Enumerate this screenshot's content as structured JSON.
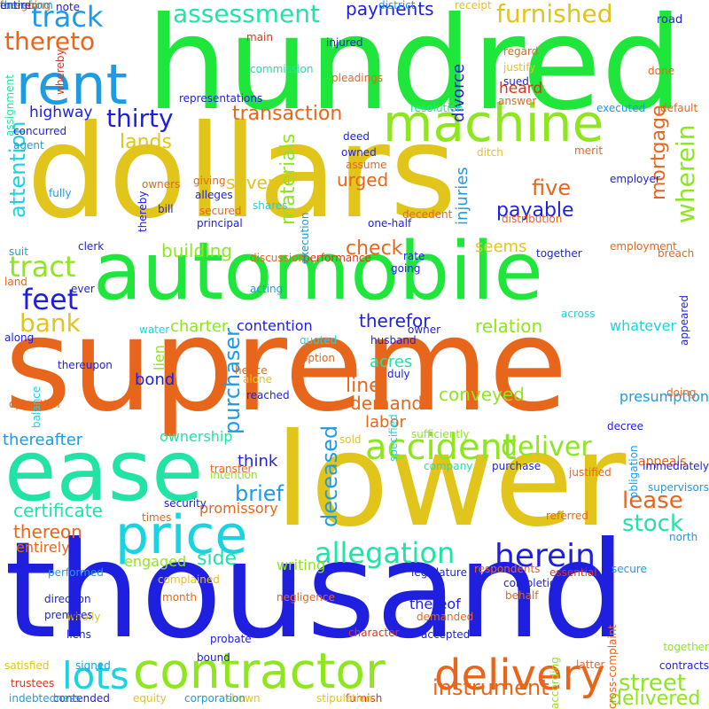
{
  "palette": {
    "green": "#1ee63a",
    "yellow": "#e2c51a",
    "orange": "#e8661b",
    "blue": "#1f1fe0",
    "cyan": "#19d4e0",
    "teal": "#22e3a6",
    "lime": "#8ee61e",
    "sky": "#1e9be3",
    "red": "#e0341a",
    "purple": "#6a1ee0"
  },
  "words": [
    {
      "text": "hundred",
      "color": "green",
      "rot": false
    },
    {
      "text": "dollars",
      "color": "yellow",
      "rot": false
    },
    {
      "text": "automobile",
      "color": "green",
      "rot": false
    },
    {
      "text": "supreme",
      "color": "orange",
      "rot": false
    },
    {
      "text": "lower",
      "color": "yellow",
      "rot": false
    },
    {
      "text": "thousand",
      "color": "blue",
      "rot": false
    },
    {
      "text": "ease",
      "color": "teal",
      "rot": false
    },
    {
      "text": "machine",
      "color": "lime",
      "rot": false
    },
    {
      "text": "rent",
      "color": "sky",
      "rot": false
    },
    {
      "text": "price",
      "color": "cyan",
      "rot": false
    },
    {
      "text": "contractor",
      "color": "lime",
      "rot": false
    },
    {
      "text": "delivery",
      "color": "orange",
      "rot": false
    },
    {
      "text": "accident",
      "color": "lime",
      "rot": false
    },
    {
      "text": "assessment",
      "color": "teal",
      "rot": false
    },
    {
      "text": "furnished",
      "color": "yellow",
      "rot": false
    },
    {
      "text": "track",
      "color": "sky",
      "rot": false
    },
    {
      "text": "thereto",
      "color": "orange",
      "rot": false
    },
    {
      "text": "payments",
      "color": "blue",
      "rot": false
    },
    {
      "text": "thirty",
      "color": "blue",
      "rot": false
    },
    {
      "text": "transaction",
      "color": "orange",
      "rot": false
    },
    {
      "text": "mortgage",
      "color": "orange",
      "rot": true
    },
    {
      "text": "wherein",
      "color": "lime",
      "rot": true
    },
    {
      "text": "tract",
      "color": "lime",
      "rot": false
    },
    {
      "text": "feet",
      "color": "blue",
      "rot": false
    },
    {
      "text": "lands",
      "color": "yellow",
      "rot": false
    },
    {
      "text": "highway",
      "color": "blue",
      "rot": false
    },
    {
      "text": "attention",
      "color": "cyan",
      "rot": true
    },
    {
      "text": "materials",
      "color": "lime",
      "rot": true
    },
    {
      "text": "allegation",
      "color": "teal",
      "rot": false
    },
    {
      "text": "herein",
      "color": "blue",
      "rot": false
    },
    {
      "text": "deliver",
      "color": "lime",
      "rot": false
    },
    {
      "text": "lots",
      "color": "cyan",
      "rot": false
    },
    {
      "text": "street",
      "color": "lime",
      "rot": false
    },
    {
      "text": "stock",
      "color": "teal",
      "rot": false
    },
    {
      "text": "lease",
      "color": "orange",
      "rot": false
    },
    {
      "text": "instrument",
      "color": "orange",
      "rot": false
    },
    {
      "text": "delivered",
      "color": "lime",
      "rot": false
    },
    {
      "text": "bank",
      "color": "yellow",
      "rot": false
    },
    {
      "text": "brief",
      "color": "sky",
      "rot": false
    },
    {
      "text": "purchaser",
      "color": "sky",
      "rot": true
    },
    {
      "text": "deceased",
      "color": "sky",
      "rot": true
    },
    {
      "text": "payable",
      "color": "blue",
      "rot": false
    },
    {
      "text": "check",
      "color": "orange",
      "rot": false
    },
    {
      "text": "five",
      "color": "orange",
      "rot": false
    },
    {
      "text": "seven",
      "color": "yellow",
      "rot": false
    },
    {
      "text": "urged",
      "color": "orange",
      "rot": false
    },
    {
      "text": "injuries",
      "color": "sky",
      "rot": true
    },
    {
      "text": "divorce",
      "color": "blue",
      "rot": true
    },
    {
      "text": "heard",
      "color": "red",
      "rot": false
    },
    {
      "text": "building",
      "color": "lime",
      "rot": false
    },
    {
      "text": "seems",
      "color": "yellow",
      "rot": false
    },
    {
      "text": "relation",
      "color": "lime",
      "rot": false
    },
    {
      "text": "therefor",
      "color": "blue",
      "rot": false
    },
    {
      "text": "whatever",
      "color": "cyan",
      "rot": false
    },
    {
      "text": "charter",
      "color": "lime",
      "rot": false
    },
    {
      "text": "contention",
      "color": "blue",
      "rot": false
    },
    {
      "text": "acres",
      "color": "teal",
      "rot": false
    },
    {
      "text": "line",
      "color": "orange",
      "rot": false
    },
    {
      "text": "demand",
      "color": "orange",
      "rot": false
    },
    {
      "text": "conveyed",
      "color": "lime",
      "rot": false
    },
    {
      "text": "labor",
      "color": "orange",
      "rot": false
    },
    {
      "text": "bond",
      "color": "blue",
      "rot": false
    },
    {
      "text": "lien",
      "color": "lime",
      "rot": true
    },
    {
      "text": "think",
      "color": "blue",
      "rot": false
    },
    {
      "text": "thereafter",
      "color": "sky",
      "rot": false
    },
    {
      "text": "ownership",
      "color": "teal",
      "rot": false
    },
    {
      "text": "certificate",
      "color": "teal",
      "rot": false
    },
    {
      "text": "promissory",
      "color": "orange",
      "rot": false
    },
    {
      "text": "thereon",
      "color": "orange",
      "rot": false
    },
    {
      "text": "entirely",
      "color": "orange",
      "rot": false
    },
    {
      "text": "side",
      "color": "teal",
      "rot": false
    },
    {
      "text": "engaged",
      "color": "lime",
      "rot": false
    },
    {
      "text": "writing",
      "color": "lime",
      "rot": false
    },
    {
      "text": "thereof",
      "color": "blue",
      "rot": false
    },
    {
      "text": "presumption",
      "color": "sky",
      "rot": false
    },
    {
      "text": "appeals",
      "color": "orange",
      "rot": false
    },
    {
      "text": "supervisors",
      "color": "sky",
      "rot": false
    },
    {
      "text": "sold",
      "color": "yellow",
      "rot": false
    },
    {
      "text": "district",
      "color": "sky",
      "rot": false
    },
    {
      "text": "receipt",
      "color": "yellow",
      "rot": false
    },
    {
      "text": "road",
      "color": "blue",
      "rot": false
    },
    {
      "text": "regard",
      "color": "orange",
      "rot": false
    },
    {
      "text": "justify",
      "color": "yellow",
      "rot": false
    },
    {
      "text": "sued",
      "color": "blue",
      "rot": false
    },
    {
      "text": "done",
      "color": "orange",
      "rot": false
    },
    {
      "text": "default",
      "color": "orange",
      "rot": false
    },
    {
      "text": "answer",
      "color": "orange",
      "rot": false
    },
    {
      "text": "executed",
      "color": "sky",
      "rot": false
    },
    {
      "text": "resolution",
      "color": "teal",
      "rot": false
    },
    {
      "text": "employer",
      "color": "blue",
      "rot": false
    },
    {
      "text": "distribution",
      "color": "orange",
      "rot": false
    },
    {
      "text": "merit",
      "color": "orange",
      "rot": false
    },
    {
      "text": "together",
      "color": "blue",
      "rot": false
    },
    {
      "text": "breach",
      "color": "orange",
      "rot": false
    },
    {
      "text": "employment",
      "color": "orange",
      "rot": false
    },
    {
      "text": "across",
      "color": "cyan",
      "rot": false
    },
    {
      "text": "appeared",
      "color": "blue",
      "rot": true
    },
    {
      "text": "doing",
      "color": "orange",
      "rot": false
    },
    {
      "text": "decree",
      "color": "blue",
      "rot": false
    },
    {
      "text": "obligation",
      "color": "sky",
      "rot": true
    },
    {
      "text": "immediately",
      "color": "blue",
      "rot": false
    },
    {
      "text": "justified",
      "color": "orange",
      "rot": false
    },
    {
      "text": "north",
      "color": "sky",
      "rot": false
    },
    {
      "text": "secure",
      "color": "sky",
      "rot": false
    },
    {
      "text": "essential",
      "color": "red",
      "rot": false
    },
    {
      "text": "respondents",
      "color": "orange",
      "rot": false
    },
    {
      "text": "legislature",
      "color": "blue",
      "rot": false
    },
    {
      "text": "character",
      "color": "red",
      "rot": false
    },
    {
      "text": "accepted",
      "color": "blue",
      "rot": false
    },
    {
      "text": "together",
      "color": "lime",
      "rot": false
    },
    {
      "text": "latter",
      "color": "orange",
      "rot": false
    },
    {
      "text": "contracts",
      "color": "blue",
      "rot": false
    },
    {
      "text": "cross-complaint",
      "color": "orange",
      "rot": true
    },
    {
      "text": "according",
      "color": "lime",
      "rot": true
    },
    {
      "text": "furnish",
      "color": "red",
      "rot": false
    },
    {
      "text": "stipulation",
      "color": "yellow",
      "rot": false
    },
    {
      "text": "shown",
      "color": "yellow",
      "rot": false
    },
    {
      "text": "corporation",
      "color": "sky",
      "rot": false
    },
    {
      "text": "equity",
      "color": "yellow",
      "rot": false
    },
    {
      "text": "contended",
      "color": "blue",
      "rot": false
    },
    {
      "text": "indebtedness",
      "color": "sky",
      "rot": false
    },
    {
      "text": "trustees",
      "color": "red",
      "rot": false
    },
    {
      "text": "signed",
      "color": "sky",
      "rot": false
    },
    {
      "text": "satisfied",
      "color": "yellow",
      "rot": false
    },
    {
      "text": "bound",
      "color": "blue",
      "rot": false
    },
    {
      "text": "probate",
      "color": "blue",
      "rot": false
    },
    {
      "text": "liens",
      "color": "blue",
      "rot": false
    },
    {
      "text": "wholly",
      "color": "yellow",
      "rot": false
    },
    {
      "text": "premises",
      "color": "blue",
      "rot": false
    },
    {
      "text": "direction",
      "color": "blue",
      "rot": false
    },
    {
      "text": "performed",
      "color": "sky",
      "rot": false
    },
    {
      "text": "complained",
      "color": "yellow",
      "rot": false
    },
    {
      "text": "month",
      "color": "orange",
      "rot": false
    },
    {
      "text": "demanded",
      "color": "orange",
      "rot": false
    },
    {
      "text": "behalf",
      "color": "orange",
      "rot": false
    },
    {
      "text": "completion",
      "color": "blue",
      "rot": false
    },
    {
      "text": "negligence",
      "color": "orange",
      "rot": false
    },
    {
      "text": "times",
      "color": "orange",
      "rot": false
    },
    {
      "text": "security",
      "color": "blue",
      "rot": false
    },
    {
      "text": "referred",
      "color": "orange",
      "rot": false
    },
    {
      "text": "company",
      "color": "teal",
      "rot": false
    },
    {
      "text": "purchase",
      "color": "blue",
      "rot": false
    },
    {
      "text": "intention",
      "color": "lime",
      "rot": false
    },
    {
      "text": "transfer",
      "color": "orange",
      "rot": false
    },
    {
      "text": "sufficiently",
      "color": "lime",
      "rot": false
    },
    {
      "text": "specified",
      "color": "cyan",
      "rot": true
    },
    {
      "text": "reached",
      "color": "blue",
      "rot": false
    },
    {
      "text": "alone",
      "color": "yellow",
      "rot": false
    },
    {
      "text": "hence",
      "color": "orange",
      "rot": false
    },
    {
      "text": "duly",
      "color": "blue",
      "rot": false
    },
    {
      "text": "option",
      "color": "orange",
      "rot": false
    },
    {
      "text": "operation",
      "color": "orange",
      "rot": false
    },
    {
      "text": "balance",
      "color": "cyan",
      "rot": true
    },
    {
      "text": "thereupon",
      "color": "blue",
      "rot": false
    },
    {
      "text": "along",
      "color": "blue",
      "rot": false
    },
    {
      "text": "water",
      "color": "cyan",
      "rot": false
    },
    {
      "text": "owner",
      "color": "blue",
      "rot": false
    },
    {
      "text": "husband",
      "color": "blue",
      "rot": false
    },
    {
      "text": "quoted",
      "color": "cyan",
      "rot": false
    },
    {
      "text": "acting",
      "color": "sky",
      "rot": false
    },
    {
      "text": "ever",
      "color": "blue",
      "rot": false
    },
    {
      "text": "land",
      "color": "orange",
      "rot": false
    },
    {
      "text": "discussion",
      "color": "orange",
      "rot": false
    },
    {
      "text": "performance",
      "color": "red",
      "rot": false
    },
    {
      "text": "going",
      "color": "blue",
      "rot": false
    },
    {
      "text": "rate",
      "color": "blue",
      "rot": false
    },
    {
      "text": "clerk",
      "color": "blue",
      "rot": false
    },
    {
      "text": "suit",
      "color": "sky",
      "rot": false
    },
    {
      "text": "decedent",
      "color": "orange",
      "rot": false
    },
    {
      "text": "one-half",
      "color": "blue",
      "rot": false
    },
    {
      "text": "principal",
      "color": "blue",
      "rot": false
    },
    {
      "text": "shares",
      "color": "cyan",
      "rot": false
    },
    {
      "text": "execution",
      "color": "sky",
      "rot": true
    },
    {
      "text": "secured",
      "color": "orange",
      "rot": false
    },
    {
      "text": "bill",
      "color": "blue",
      "rot": false
    },
    {
      "text": "thereby",
      "color": "blue",
      "rot": true
    },
    {
      "text": "owners",
      "color": "orange",
      "rot": false
    },
    {
      "text": "alleges",
      "color": "blue",
      "rot": false
    },
    {
      "text": "giving",
      "color": "orange",
      "rot": false
    },
    {
      "text": "fully",
      "color": "sky",
      "rot": false
    },
    {
      "text": "assume",
      "color": "orange",
      "rot": false
    },
    {
      "text": "owned",
      "color": "blue",
      "rot": false
    },
    {
      "text": "ditch",
      "color": "yellow",
      "rot": false
    },
    {
      "text": "deed",
      "color": "blue",
      "rot": false
    },
    {
      "text": "agent",
      "color": "sky",
      "rot": false
    },
    {
      "text": "concurred",
      "color": "blue",
      "rot": false
    },
    {
      "text": "representations",
      "color": "blue",
      "rot": false
    },
    {
      "text": "injured",
      "color": "blue",
      "rot": false
    },
    {
      "text": "commission",
      "color": "teal",
      "rot": false
    },
    {
      "text": "pleadings",
      "color": "orange",
      "rot": false
    },
    {
      "text": "whereby",
      "color": "red",
      "rot": true
    },
    {
      "text": "assignment",
      "color": "teal",
      "rot": true
    },
    {
      "text": "note",
      "color": "blue",
      "rot": false
    },
    {
      "text": "main",
      "color": "red",
      "rot": false
    },
    {
      "text": "therein",
      "color": "orange",
      "rot": false
    },
    {
      "text": "foregoing",
      "color": "orange",
      "rot": false
    },
    {
      "text": "therefrom",
      "color": "sky",
      "rot": false
    },
    {
      "text": "entire",
      "color": "blue",
      "rot": false
    }
  ]
}
